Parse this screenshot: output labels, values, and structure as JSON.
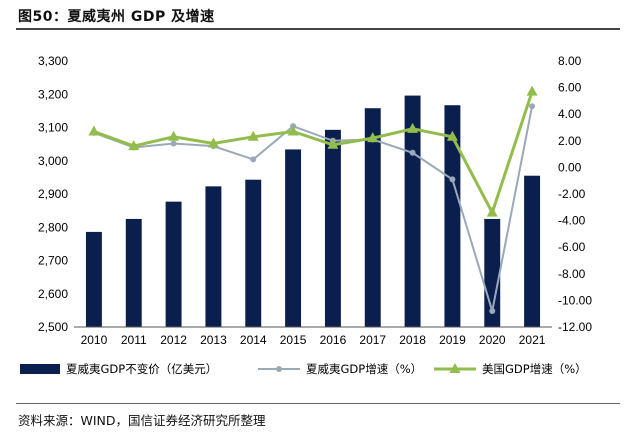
{
  "title": "图50：夏威夷州 GDP 及增速",
  "source": "资料来源：WIND，国信证券经济研究所整理",
  "colors": {
    "bar": "#0b1f4f",
    "state_growth": "#9aa9b8",
    "us_growth": "#92bd4c"
  },
  "chart_data": {
    "type": "bar",
    "categories": [
      "2010",
      "2011",
      "2012",
      "2013",
      "2014",
      "2015",
      "2016",
      "2017",
      "2018",
      "2019",
      "2020",
      "2021"
    ],
    "left_axis": {
      "ylim": [
        2500,
        3300
      ],
      "ticks": [
        "2,500",
        "2,600",
        "2,700",
        "2,800",
        "2,900",
        "3,000",
        "3,100",
        "3,200",
        "3,300"
      ]
    },
    "right_axis": {
      "ylim": [
        -12,
        8
      ],
      "ticks": [
        "-12.00",
        "-10.00",
        "-8.00",
        "-6.00",
        "-4.00",
        "-2.00",
        "0.00",
        "2.00",
        "4.00",
        "6.00",
        "8.00"
      ]
    },
    "series": [
      {
        "name": "夏威夷GDP不变价（亿美元）",
        "type": "bar",
        "axis": "left",
        "values": [
          2786,
          2825,
          2877,
          2923,
          2943,
          3034,
          3093,
          3158,
          3196,
          3167,
          2825,
          2955
        ]
      },
      {
        "name": "夏威夷GDP增速（%）",
        "type": "line",
        "axis": "right",
        "values": [
          2.6,
          1.5,
          1.8,
          1.6,
          0.6,
          3.1,
          2.0,
          2.1,
          1.1,
          -0.9,
          -10.8,
          4.6
        ]
      },
      {
        "name": "美国GDP增速（%）",
        "type": "line",
        "axis": "right",
        "values": [
          2.7,
          1.6,
          2.3,
          1.8,
          2.3,
          2.7,
          1.7,
          2.2,
          2.9,
          2.3,
          -3.4,
          5.7
        ]
      }
    ]
  }
}
